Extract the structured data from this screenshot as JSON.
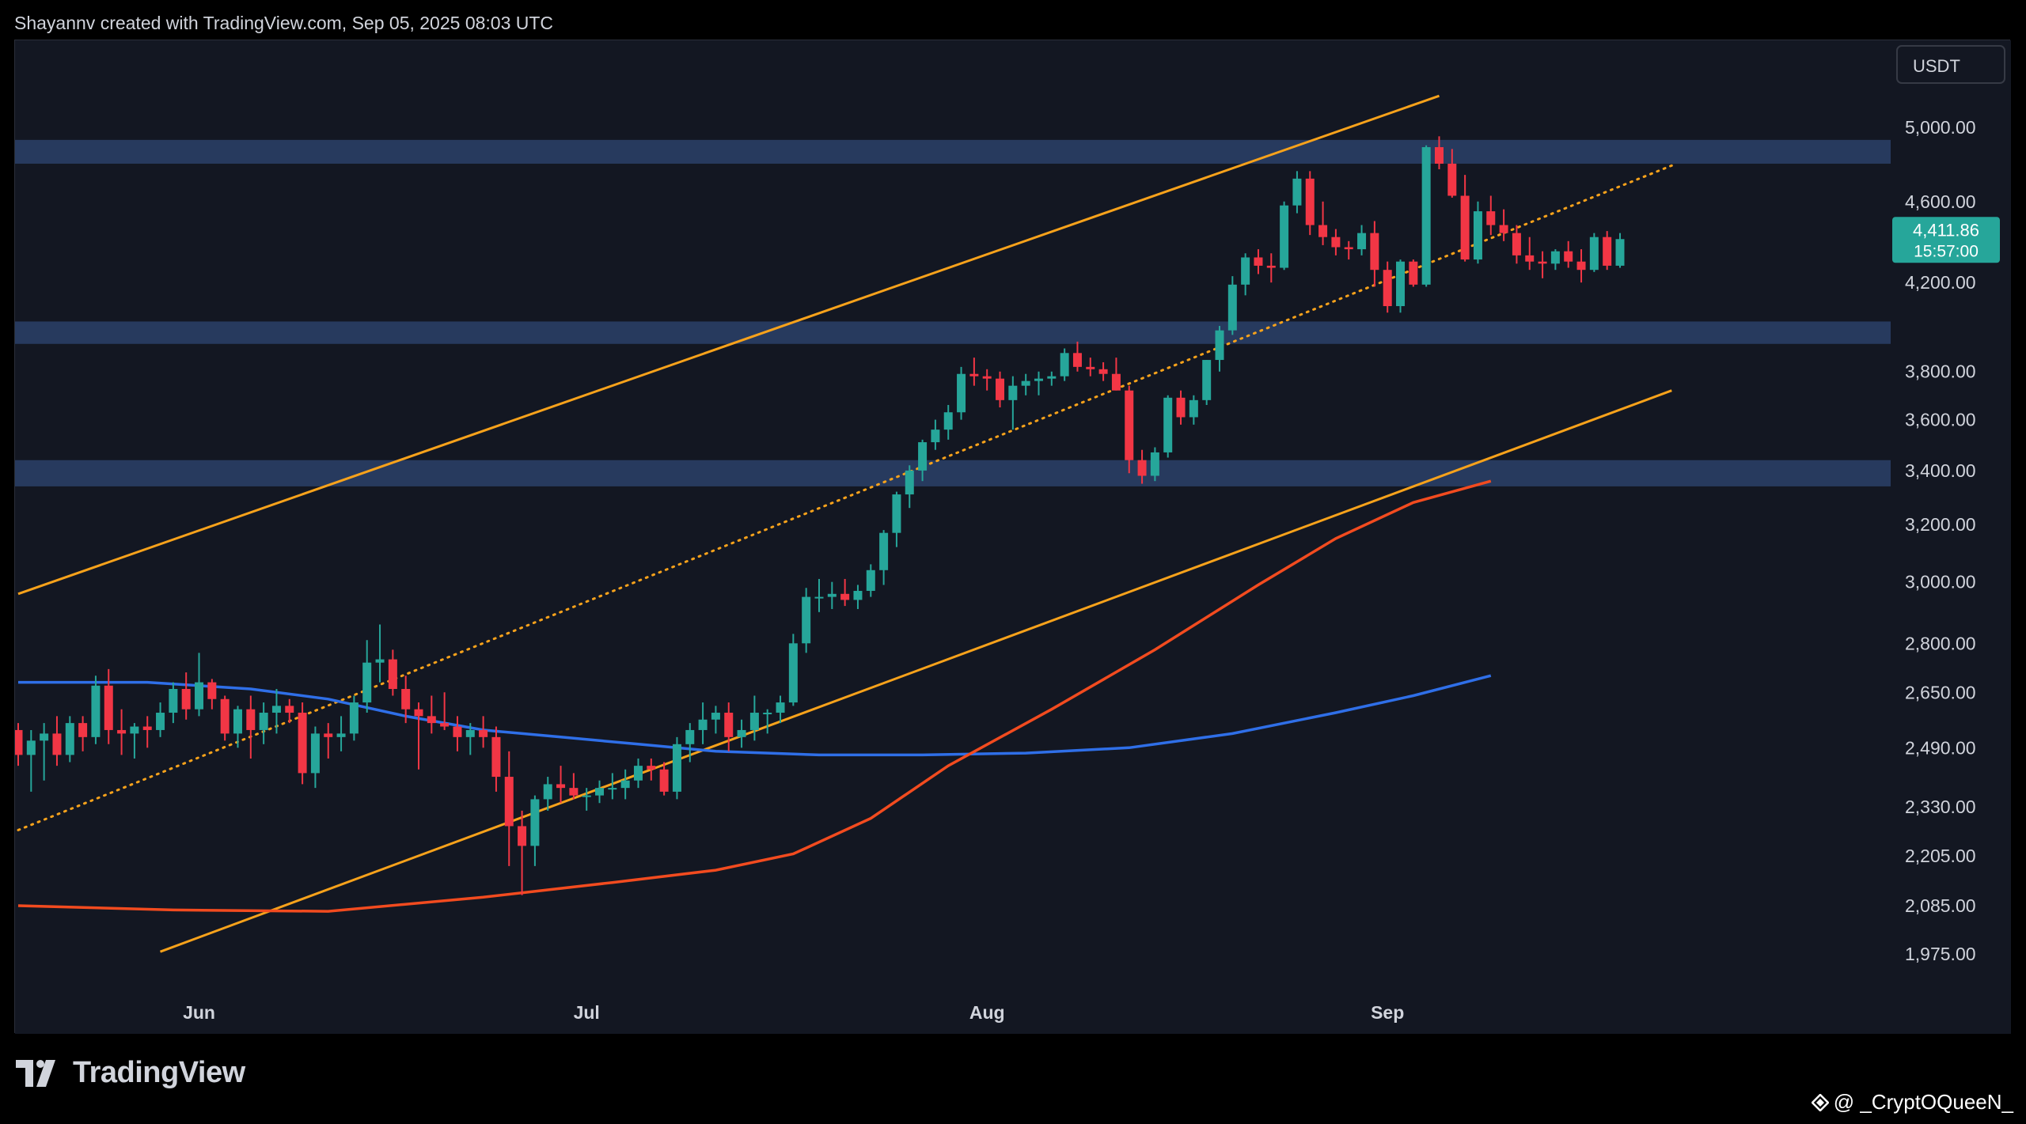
{
  "header": {
    "attribution": "Shayannv created with TradingView.com, Sep 05, 2025 08:03 UTC"
  },
  "footer": {
    "brand": "TradingView",
    "watermark": "@ _CryptOQueeN_"
  },
  "colors": {
    "background": "#131722",
    "up": "#26a69a",
    "down": "#f23645",
    "channel": "#f7a21b",
    "zone": "#2c4168",
    "ma_fast": "#f24b1f",
    "ma_slow": "#2f6fe8"
  },
  "chart_data": {
    "type": "candlestick",
    "currency_label": "USDT",
    "price_tag": {
      "price": "4,411.86",
      "countdown": "15:57:00"
    },
    "y_ticks": [
      5000,
      4600,
      4200,
      3800,
      3600,
      3400,
      3200,
      3000,
      2800,
      2650,
      2490,
      2330,
      2205,
      2085,
      1975
    ],
    "y_tick_labels": [
      "5,000.00",
      "4,600.00",
      "4,200.00",
      "3,800.00",
      "3,600.00",
      "3,400.00",
      "3,200.00",
      "3,000.00",
      "2,800.00",
      "2,650.00",
      "2,490.00",
      "2,330.00",
      "2,205.00",
      "2,085.00",
      "1,975.00"
    ],
    "x_labels": [
      {
        "label": "Jun",
        "index": 14
      },
      {
        "label": "Jul",
        "index": 44
      },
      {
        "label": "Aug",
        "index": 75
      },
      {
        "label": "Sep",
        "index": 106
      }
    ],
    "candles": [
      [
        2540,
        2560,
        2440,
        2470
      ],
      [
        2470,
        2540,
        2370,
        2510
      ],
      [
        2510,
        2560,
        2400,
        2530
      ],
      [
        2530,
        2580,
        2440,
        2470
      ],
      [
        2470,
        2580,
        2450,
        2560
      ],
      [
        2560,
        2580,
        2480,
        2520
      ],
      [
        2520,
        2700,
        2500,
        2670
      ],
      [
        2670,
        2720,
        2500,
        2540
      ],
      [
        2540,
        2600,
        2470,
        2530
      ],
      [
        2530,
        2560,
        2460,
        2550
      ],
      [
        2550,
        2580,
        2490,
        2540
      ],
      [
        2540,
        2620,
        2520,
        2590
      ],
      [
        2590,
        2680,
        2560,
        2660
      ],
      [
        2660,
        2710,
        2570,
        2600
      ],
      [
        2600,
        2770,
        2580,
        2680
      ],
      [
        2680,
        2690,
        2600,
        2630
      ],
      [
        2630,
        2640,
        2510,
        2530
      ],
      [
        2530,
        2610,
        2490,
        2600
      ],
      [
        2600,
        2640,
        2460,
        2540
      ],
      [
        2540,
        2620,
        2500,
        2590
      ],
      [
        2590,
        2660,
        2530,
        2610
      ],
      [
        2610,
        2630,
        2560,
        2590
      ],
      [
        2590,
        2620,
        2390,
        2420
      ],
      [
        2420,
        2550,
        2380,
        2530
      ],
      [
        2530,
        2560,
        2460,
        2520
      ],
      [
        2520,
        2580,
        2480,
        2530
      ],
      [
        2530,
        2640,
        2510,
        2620
      ],
      [
        2620,
        2810,
        2590,
        2740
      ],
      [
        2740,
        2860,
        2680,
        2750
      ],
      [
        2750,
        2780,
        2640,
        2660
      ],
      [
        2660,
        2700,
        2560,
        2600
      ],
      [
        2600,
        2620,
        2430,
        2580
      ],
      [
        2580,
        2640,
        2530,
        2560
      ],
      [
        2560,
        2650,
        2540,
        2550
      ],
      [
        2550,
        2580,
        2480,
        2520
      ],
      [
        2520,
        2560,
        2470,
        2540
      ],
      [
        2540,
        2580,
        2490,
        2520
      ],
      [
        2520,
        2550,
        2370,
        2410
      ],
      [
        2410,
        2480,
        2180,
        2280
      ],
      [
        2280,
        2320,
        2110,
        2230
      ],
      [
        2230,
        2360,
        2180,
        2350
      ],
      [
        2350,
        2410,
        2320,
        2390
      ],
      [
        2390,
        2440,
        2340,
        2380
      ],
      [
        2380,
        2420,
        2350,
        2360
      ],
      [
        2360,
        2380,
        2320,
        2360
      ],
      [
        2360,
        2400,
        2340,
        2380
      ],
      [
        2380,
        2420,
        2350,
        2380
      ],
      [
        2380,
        2430,
        2350,
        2400
      ],
      [
        2400,
        2460,
        2380,
        2440
      ],
      [
        2440,
        2460,
        2400,
        2430
      ],
      [
        2430,
        2450,
        2360,
        2370
      ],
      [
        2370,
        2520,
        2350,
        2500
      ],
      [
        2500,
        2560,
        2450,
        2540
      ],
      [
        2540,
        2620,
        2500,
        2570
      ],
      [
        2570,
        2610,
        2530,
        2590
      ],
      [
        2590,
        2620,
        2480,
        2520
      ],
      [
        2520,
        2570,
        2490,
        2540
      ],
      [
        2540,
        2640,
        2510,
        2590
      ],
      [
        2590,
        2600,
        2530,
        2590
      ],
      [
        2590,
        2640,
        2560,
        2620
      ],
      [
        2620,
        2830,
        2610,
        2800
      ],
      [
        2800,
        2980,
        2770,
        2950
      ],
      [
        2950,
        3010,
        2900,
        2950
      ],
      [
        2950,
        3000,
        2910,
        2960
      ],
      [
        2960,
        3010,
        2920,
        2940
      ],
      [
        2940,
        2990,
        2910,
        2970
      ],
      [
        2970,
        3060,
        2950,
        3040
      ],
      [
        3040,
        3180,
        2990,
        3170
      ],
      [
        3170,
        3320,
        3120,
        3310
      ],
      [
        3310,
        3420,
        3260,
        3400
      ],
      [
        3400,
        3520,
        3360,
        3510
      ],
      [
        3510,
        3600,
        3480,
        3560
      ],
      [
        3560,
        3660,
        3520,
        3630
      ],
      [
        3630,
        3820,
        3600,
        3790
      ],
      [
        3790,
        3860,
        3740,
        3780
      ],
      [
        3780,
        3810,
        3720,
        3770
      ],
      [
        3770,
        3800,
        3650,
        3680
      ],
      [
        3680,
        3780,
        3560,
        3740
      ],
      [
        3740,
        3790,
        3700,
        3760
      ],
      [
        3760,
        3800,
        3700,
        3770
      ],
      [
        3770,
        3800,
        3740,
        3780
      ],
      [
        3780,
        3900,
        3760,
        3880
      ],
      [
        3880,
        3930,
        3800,
        3820
      ],
      [
        3820,
        3860,
        3780,
        3810
      ],
      [
        3810,
        3840,
        3760,
        3790
      ],
      [
        3790,
        3860,
        3720,
        3720
      ],
      [
        3720,
        3740,
        3390,
        3440
      ],
      [
        3440,
        3480,
        3350,
        3380
      ],
      [
        3380,
        3490,
        3360,
        3470
      ],
      [
        3470,
        3700,
        3450,
        3690
      ],
      [
        3690,
        3720,
        3580,
        3610
      ],
      [
        3610,
        3700,
        3580,
        3680
      ],
      [
        3680,
        3850,
        3660,
        3850
      ],
      [
        3850,
        4000,
        3800,
        3980
      ],
      [
        3980,
        4230,
        3960,
        4190
      ],
      [
        4190,
        4340,
        4140,
        4320
      ],
      [
        4320,
        4360,
        4240,
        4280
      ],
      [
        4280,
        4340,
        4200,
        4270
      ],
      [
        4270,
        4600,
        4260,
        4580
      ],
      [
        4580,
        4760,
        4540,
        4720
      ],
      [
        4720,
        4760,
        4430,
        4480
      ],
      [
        4480,
        4600,
        4380,
        4420
      ],
      [
        4420,
        4460,
        4330,
        4370
      ],
      [
        4370,
        4400,
        4310,
        4360
      ],
      [
        4360,
        4480,
        4330,
        4440
      ],
      [
        4440,
        4500,
        4180,
        4260
      ],
      [
        4260,
        4300,
        4060,
        4090
      ],
      [
        4090,
        4310,
        4060,
        4300
      ],
      [
        4300,
        4310,
        4180,
        4190
      ],
      [
        4190,
        4900,
        4180,
        4890
      ],
      [
        4890,
        4950,
        4770,
        4800
      ],
      [
        4800,
        4880,
        4620,
        4630
      ],
      [
        4630,
        4740,
        4300,
        4310
      ],
      [
        4310,
        4600,
        4290,
        4550
      ],
      [
        4550,
        4630,
        4430,
        4480
      ],
      [
        4480,
        4560,
        4400,
        4440
      ],
      [
        4440,
        4480,
        4290,
        4330
      ],
      [
        4330,
        4420,
        4260,
        4300
      ],
      [
        4300,
        4350,
        4220,
        4290
      ],
      [
        4290,
        4360,
        4260,
        4350
      ],
      [
        4350,
        4400,
        4270,
        4300
      ],
      [
        4300,
        4360,
        4200,
        4260
      ],
      [
        4260,
        4440,
        4250,
        4420
      ],
      [
        4420,
        4450,
        4260,
        4280
      ],
      [
        4280,
        4440,
        4270,
        4410
      ]
    ],
    "ma_fast": [
      [
        0,
        2085
      ],
      [
        12,
        2075
      ],
      [
        24,
        2072
      ],
      [
        36,
        2105
      ],
      [
        46,
        2140
      ],
      [
        54,
        2170
      ],
      [
        60,
        2210
      ],
      [
        66,
        2300
      ],
      [
        72,
        2440
      ],
      [
        80,
        2600
      ],
      [
        88,
        2780
      ],
      [
        96,
        2990
      ],
      [
        102,
        3150
      ],
      [
        108,
        3280
      ],
      [
        114,
        3360
      ]
    ],
    "ma_slow": [
      [
        0,
        2680
      ],
      [
        10,
        2680
      ],
      [
        18,
        2660
      ],
      [
        24,
        2630
      ],
      [
        30,
        2580
      ],
      [
        36,
        2540
      ],
      [
        42,
        2520
      ],
      [
        48,
        2500
      ],
      [
        54,
        2480
      ],
      [
        62,
        2470
      ],
      [
        70,
        2470
      ],
      [
        78,
        2475
      ],
      [
        86,
        2490
      ],
      [
        94,
        2530
      ],
      [
        102,
        2590
      ],
      [
        108,
        2640
      ],
      [
        114,
        2700
      ]
    ],
    "channel_upper": [
      [
        0,
        2960
      ],
      [
        110,
        5180
      ]
    ],
    "channel_lower": [
      [
        11,
        1980
      ],
      [
        128,
        3720
      ]
    ],
    "channel_mid": [
      [
        0,
        2270
      ],
      [
        128,
        4790
      ]
    ],
    "zones": [
      [
        4800,
        4930
      ],
      [
        3920,
        4020
      ],
      [
        3340,
        3440
      ]
    ]
  }
}
